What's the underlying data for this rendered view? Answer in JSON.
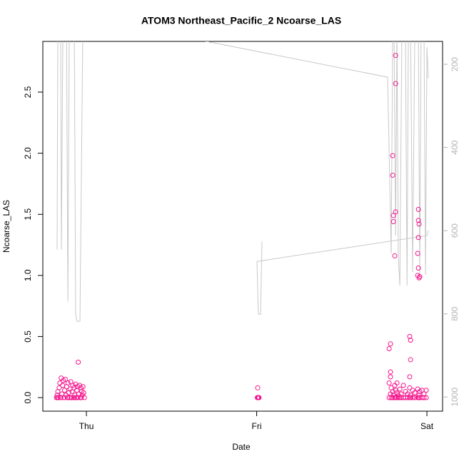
{
  "chart_data": {
    "type": "scatter",
    "title": "ATOM3 Northeast_Pacific_2 Ncoarse_LAS",
    "x_label": "Date",
    "y_label": "Ncoarse_LAS",
    "color": "#f5148c",
    "x": [
      -0.176,
      -0.172,
      -0.168,
      -0.164,
      -0.16,
      -0.156,
      -0.152,
      -0.148,
      -0.144,
      -0.14,
      -0.136,
      -0.132,
      -0.128,
      -0.124,
      -0.12,
      -0.116,
      -0.112,
      -0.108,
      -0.104,
      -0.1,
      -0.096,
      -0.092,
      -0.088,
      -0.084,
      -0.08,
      -0.076,
      -0.072,
      -0.068,
      -0.064,
      -0.06,
      -0.056,
      -0.052,
      -0.048,
      -0.044,
      -0.04,
      -0.036,
      -0.032,
      -0.028,
      -0.024,
      -0.02,
      -0.016,
      -0.012,
      -0.17,
      -0.15,
      -0.13,
      -0.11,
      -0.09,
      -0.07,
      -0.05,
      -0.03,
      1.004,
      1.006,
      1.008,
      1.01,
      1.012,
      1.014,
      1.006,
      1.778,
      1.778,
      1.778,
      1.786,
      1.786,
      1.786,
      1.786,
      1.79,
      1.79,
      1.799,
      1.799,
      1.799,
      1.799,
      1.803,
      1.803,
      1.803,
      1.811,
      1.811,
      1.811,
      1.816,
      1.816,
      1.816,
      1.816,
      1.816,
      1.824,
      1.824,
      1.824,
      1.832,
      1.832,
      1.841,
      1.841,
      1.849,
      1.849,
      1.862,
      1.862,
      1.874,
      1.874,
      1.887,
      1.887,
      1.899,
      1.899,
      1.899,
      1.899,
      1.904,
      1.904,
      1.904,
      1.904,
      1.916,
      1.916,
      1.929,
      1.929,
      1.946,
      1.946,
      1.946,
      1.946,
      1.95,
      1.95,
      1.95,
      1.95,
      1.95,
      1.954,
      1.954,
      1.954,
      1.958,
      1.958,
      1.958,
      1.971,
      1.971,
      1.983,
      1.983,
      1.996,
      1.996
    ],
    "values": [
      0.0,
      0.02,
      0.05,
      0.0,
      0.08,
      0.12,
      0.0,
      0.16,
      0.03,
      0.1,
      0.14,
      0.0,
      0.06,
      0.15,
      0.02,
      0.09,
      0.0,
      0.12,
      0.04,
      0.0,
      0.07,
      0.13,
      0.0,
      0.05,
      0.1,
      0.0,
      0.08,
      0.02,
      0.11,
      0.0,
      0.06,
      0.09,
      0.29,
      0.03,
      0.1,
      0.0,
      0.08,
      0.05,
      0.02,
      0.09,
      0.04,
      0.0,
      0,
      0,
      0,
      0,
      0,
      0,
      0,
      0,
      0,
      0,
      0,
      0,
      0,
      0,
      0.08,
      0.4,
      0.0,
      0.12,
      0.44,
      0.21,
      0.17,
      0.03,
      0.0,
      0.08,
      1.98,
      1.82,
      0.0,
      0.05,
      1.49,
      1.44,
      0.02,
      1.16,
      0.0,
      0.1,
      2.8,
      2.57,
      1.52,
      0.06,
      0.0,
      0.12,
      0.0,
      0.04,
      0.0,
      0.02,
      0.07,
      0.0,
      0.0,
      0.03,
      0.1,
      0.0,
      0.0,
      0.05,
      0.03,
      0.0,
      0.5,
      0.17,
      0.0,
      0.08,
      0.47,
      0.31,
      0.0,
      0.02,
      0.0,
      0.06,
      0.04,
      0.0,
      1.18,
      1.0,
      0.0,
      0.07,
      1.54,
      1.45,
      1.31,
      1.06,
      0.0,
      1.42,
      0.98,
      0.02,
      0.99,
      0.0,
      0.05,
      0.0,
      0.06,
      0.03,
      0.0,
      0.0,
      0.06
    ],
    "line": {
      "axis": "y2",
      "color": "#c8c8c8",
      "x": [
        -0.172,
        -0.168,
        -0.151,
        -0.147,
        -0.138,
        -0.117,
        -0.109,
        -0.101,
        -0.071,
        -0.063,
        -0.055,
        -0.046,
        -0.038,
        -0.021,
        -0.013,
        1.769,
        1.79,
        1.799,
        1.807,
        1.816,
        1.824,
        1.832,
        1.841,
        1.853,
        1.874,
        1.883,
        1.891,
        1.904,
        1.916,
        1.929,
        1.95,
        1.958,
        1.966,
        1.983,
        1.992,
        2.0,
        2.008,
        null,
        1.031,
        1.023,
        1.01,
        1.002,
        2.0,
        2.008
      ],
      "y": [
        646,
        120,
        120,
        646,
        120,
        120,
        770,
        120,
        120,
        801,
        818,
        818,
        818,
        120,
        87,
        231,
        655,
        120,
        120,
        612,
        120,
        664,
        732,
        120,
        120,
        732,
        120,
        120,
        700,
        120,
        120,
        706,
        120,
        120,
        706,
        159,
        234,
        null,
        626,
        801,
        801,
        674,
        612,
        600
      ]
    },
    "xlim": [
      -0.256,
      2.092
    ],
    "ylim": [
      -0.111,
      2.915
    ],
    "y2lim": [
      1034,
      145
    ],
    "xticks": [
      {
        "value": 0,
        "label": "Thu"
      },
      {
        "value": 1,
        "label": "Fri"
      },
      {
        "value": 2,
        "label": "Sat"
      }
    ],
    "yticks": [
      {
        "value": 0,
        "label": "0.0"
      },
      {
        "value": 0.5,
        "label": "0.5"
      },
      {
        "value": 1,
        "label": "1.0"
      },
      {
        "value": 1.5,
        "label": "1.5"
      },
      {
        "value": 2,
        "label": "2.0"
      },
      {
        "value": 2.5,
        "label": "2.5"
      }
    ],
    "y2ticks": [
      200,
      400,
      600,
      800,
      1000
    ]
  }
}
